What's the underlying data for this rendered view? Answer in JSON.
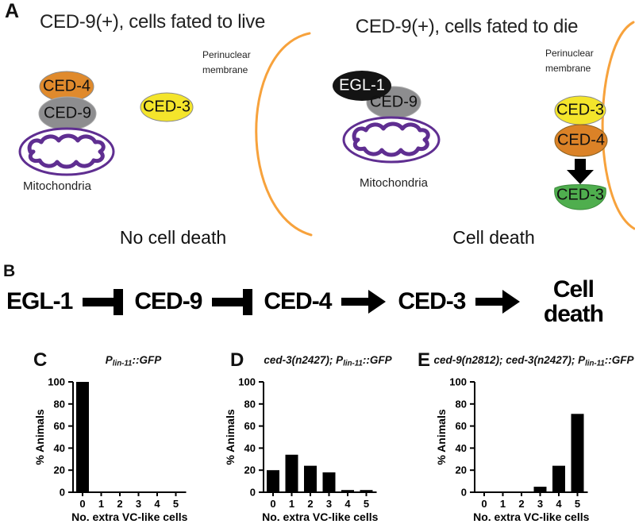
{
  "panelA": {
    "label": "A",
    "left": {
      "title": "CED-9(+), cells fated to live",
      "membrane_label": "Perinuclear membrane",
      "ced4": "CED-4",
      "ced9": "CED-9",
      "ced3": "CED-3",
      "mitochondria_label": "Mitochondria",
      "outcome": "No cell death"
    },
    "right": {
      "title": "CED-9(+), cells fated to die",
      "membrane_label": "Perinuclear membrane",
      "egl1": "EGL-1",
      "ced9": "CED-9",
      "ced3_inactive": "CED-3",
      "ced4": "CED-4",
      "ced3_active": "CED-3",
      "mitochondria_label": "Mitochondria",
      "outcome": "Cell death"
    }
  },
  "panelB": {
    "label": "B",
    "nodes": [
      "EGL-1",
      "CED-9",
      "CED-4",
      "CED-3",
      "Cell death"
    ],
    "connectors": [
      "inhibit",
      "inhibit",
      "activate",
      "activate"
    ]
  },
  "chart_data": [
    {
      "type": "bar",
      "panel_label": "C",
      "title": "P(lin-11)::GFP",
      "title_parts": [
        {
          "text": "P"
        },
        {
          "text": "lin-11",
          "sub": true
        },
        {
          "text": "::GFP"
        }
      ],
      "categories": [
        "0",
        "1",
        "2",
        "3",
        "4",
        "5"
      ],
      "values": [
        100,
        0,
        0,
        0,
        0,
        0
      ],
      "xlabel": "No. extra VC-like cells",
      "ylabel": "% Animals",
      "ylim": [
        0,
        100
      ],
      "yticks": [
        0,
        20,
        40,
        60,
        80,
        100
      ],
      "bar_color": "#000000",
      "grid": false
    },
    {
      "type": "bar",
      "panel_label": "D",
      "title": "ced-3(n2427); P(lin-11)::GFP",
      "title_parts": [
        {
          "text": "ced-3(n2427); P"
        },
        {
          "text": "lin-11",
          "sub": true
        },
        {
          "text": "::GFP"
        }
      ],
      "categories": [
        "0",
        "1",
        "2",
        "3",
        "4",
        "5"
      ],
      "values": [
        20,
        34,
        24,
        18,
        2,
        2
      ],
      "xlabel": "No. extra VC-like cells",
      "ylabel": "% Animals",
      "ylim": [
        0,
        100
      ],
      "yticks": [
        0,
        20,
        40,
        60,
        80,
        100
      ],
      "bar_color": "#000000",
      "grid": false
    },
    {
      "type": "bar",
      "panel_label": "E",
      "title": "ced-9(n2812); ced-3(n2427); P(lin-11)::GFP",
      "title_parts": [
        {
          "text": "ced-9(n2812); ced-3(n2427); P"
        },
        {
          "text": "lin-11",
          "sub": true
        },
        {
          "text": "::GFP"
        }
      ],
      "categories": [
        "0",
        "1",
        "2",
        "3",
        "4",
        "5"
      ],
      "values": [
        0,
        0,
        0,
        5,
        24,
        71
      ],
      "xlabel": "No. extra VC-like cells",
      "ylabel": "% Animals",
      "ylim": [
        0,
        100
      ],
      "yticks": [
        0,
        20,
        40,
        60,
        80,
        100
      ],
      "bar_color": "#000000",
      "grid": false
    }
  ],
  "colors": {
    "ced4_orange": "#E08A2C",
    "ced9_gray": "#8D8D8F",
    "ced3_yellow": "#F4E52B",
    "egl1_black": "#141414",
    "ced3_green": "#4FAE4E",
    "mitochondria_purple": "#5F2E91",
    "membrane_orange": "#F7A23C",
    "bar_black": "#000000"
  }
}
